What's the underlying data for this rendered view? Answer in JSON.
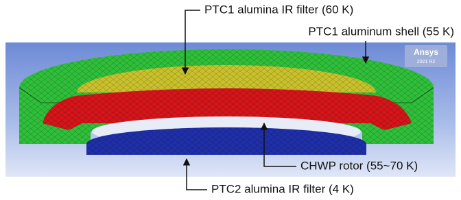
{
  "annotations": {
    "top_filter": "PTC1 alumina IR filter (60 K)",
    "shell": "PTC1 aluminum shell (55 K)",
    "rotor": "CHWP rotor (55~70 K)",
    "bottom_filter": "PTC2 alumina IR filter (4 K)"
  },
  "badge": {
    "brand": "Ansys",
    "version": "2021 R2"
  }
}
